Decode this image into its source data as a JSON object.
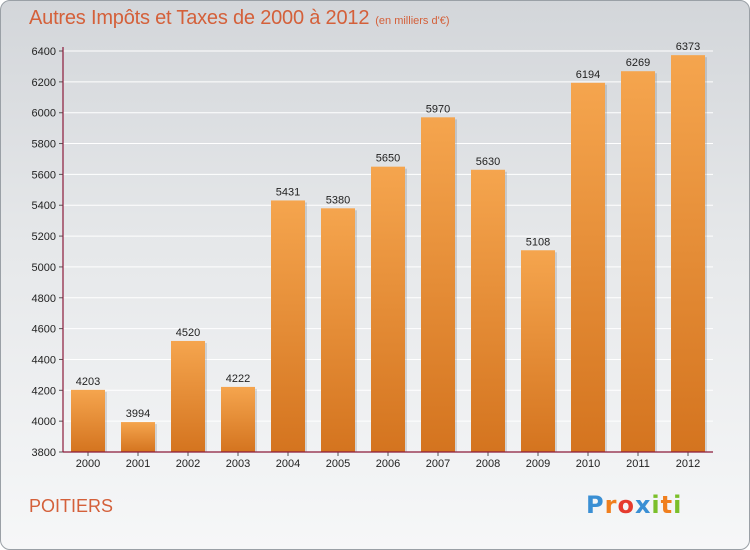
{
  "chart_data": {
    "type": "bar",
    "title": "Autres Impôts et Taxes de 2000 à 2012",
    "unit_note": "(en milliers d'€)",
    "categories": [
      "2000",
      "2001",
      "2002",
      "2003",
      "2004",
      "2005",
      "2006",
      "2007",
      "2008",
      "2009",
      "2010",
      "2011",
      "2012"
    ],
    "values": [
      4203,
      3994,
      4520,
      4222,
      5431,
      5380,
      5650,
      5970,
      5630,
      5108,
      6194,
      6269,
      6373
    ],
    "ylim": [
      3800,
      6400
    ],
    "yticks": [
      3800,
      4000,
      4200,
      4400,
      4600,
      4800,
      5000,
      5200,
      5400,
      5600,
      5800,
      6000,
      6200,
      6400
    ],
    "grid": true,
    "bar_color_top": "#f5a54e",
    "bar_color_bottom": "#d4741f",
    "axis_color": "#8b1a3a"
  },
  "footer": {
    "city": "POITIERS",
    "logo_letters": [
      "P",
      "r",
      "o",
      "x",
      "i",
      "t",
      "i"
    ],
    "logo_colors": [
      "#3a8fd4",
      "#f07f1e",
      "#e63b2e",
      "#3a8fd4",
      "#7bbf2a",
      "#f07f1e",
      "#7bbf2a"
    ]
  }
}
